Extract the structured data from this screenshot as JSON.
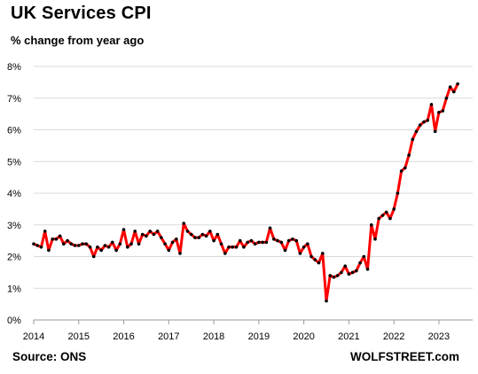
{
  "chart_data": {
    "type": "line",
    "title": "UK Services CPI",
    "subtitle": "% change from year ago",
    "ylim": [
      0,
      8
    ],
    "yticks": [
      "0%",
      "1%",
      "2%",
      "3%",
      "4%",
      "5%",
      "6%",
      "7%",
      "8%"
    ],
    "xticks": [
      "2014",
      "2015",
      "2016",
      "2017",
      "2018",
      "2019",
      "2020",
      "2021",
      "2022",
      "2023"
    ],
    "xlim": [
      2014.0,
      2023.75
    ],
    "grid": "horizontal",
    "source": "Source: ONS",
    "brand": "WOLFSTREET.com",
    "line_color": "#ff0000",
    "marker_color": "#000000",
    "series": [
      {
        "start": "2014-01",
        "values": [
          2.4,
          2.35,
          2.3,
          2.8,
          2.2,
          2.55,
          2.55,
          2.65,
          2.4,
          2.5,
          2.4,
          2.35,
          2.35,
          2.4,
          2.4,
          2.3,
          2.0,
          2.3,
          2.2,
          2.35,
          2.3,
          2.45,
          2.2,
          2.4,
          2.85,
          2.3,
          2.4,
          2.8,
          2.4,
          2.7,
          2.65,
          2.8,
          2.7,
          2.8,
          2.6,
          2.4,
          2.2,
          2.45,
          2.55,
          2.1,
          3.05,
          2.8,
          2.7,
          2.6,
          2.6,
          2.7,
          2.65,
          2.8,
          2.5,
          2.7,
          2.4,
          2.1,
          2.3,
          2.3,
          2.3,
          2.5,
          2.3,
          2.45,
          2.5,
          2.4,
          2.45,
          2.45,
          2.45,
          2.9,
          2.55,
          2.5,
          2.45,
          2.2,
          2.5,
          2.55,
          2.5,
          2.1,
          2.3,
          2.4,
          2.0,
          1.9,
          1.8,
          2.1,
          0.6,
          1.4,
          1.35,
          1.4,
          1.5,
          1.7,
          1.45,
          1.5,
          1.55,
          1.8,
          2.0,
          1.6,
          3.0,
          2.55,
          3.2,
          3.3,
          3.4,
          3.2,
          3.5,
          4.0,
          4.7,
          4.8,
          5.2,
          5.7,
          5.95,
          6.15,
          6.25,
          6.3,
          6.8,
          5.95,
          6.55,
          6.6,
          7.0,
          7.35,
          7.2,
          7.45
        ]
      }
    ]
  }
}
